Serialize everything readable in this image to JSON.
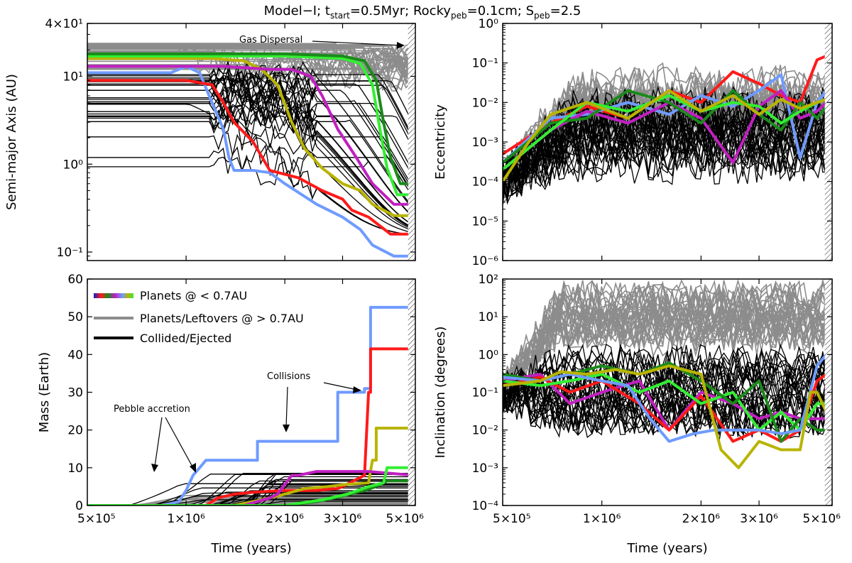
{
  "figure": {
    "title": "Model−I; tₛₜₐᵣₜ=0.5Myr; Rockyₚₑᵦ=0.1cm; Sₚₑᵦ=2.5",
    "title_parts": {
      "prefix": "Model−I; t",
      "sub1": "start",
      "mid1": "=0.5Myr; Rocky",
      "sub2": "peb",
      "mid2": "=0.1cm; S",
      "sub3": "peb",
      "suffix": "=2.5"
    }
  },
  "colors": {
    "blue": "#6f9bff",
    "red": "#ff1a1a",
    "gold": "#b8b400",
    "magenta": "#c020c0",
    "green_dark": "#1a8a1a",
    "green_light": "#33ee33",
    "gray": "#8c8c8c",
    "black": "#000000"
  },
  "legend": [
    {
      "label": "Planets @ < 0.7AU",
      "style": "rainbow"
    },
    {
      "label": "Planets/Leftovers @ > 0.7AU",
      "style": "gray"
    },
    {
      "label": "Collided/Ejected",
      "style": "black"
    }
  ],
  "annotations": {
    "gas_dispersal": "Gas Dispersal",
    "collisions": "Collisions",
    "pebble_accretion": "Pebble accretion"
  },
  "chart_data": [
    {
      "id": "semimajor",
      "type": "line",
      "xlabel": "",
      "ylabel": "Semi-major Axis (AU)",
      "xscale": "log",
      "yscale": "log",
      "xlim": [
        500000,
        5000000
      ],
      "ylim": [
        0.08,
        40
      ],
      "xticks": [
        {
          "v": 500000,
          "label": "5×10⁵"
        },
        {
          "v": 1000000,
          "label": "1×10⁶"
        },
        {
          "v": 2000000,
          "label": "2×10⁶"
        },
        {
          "v": 3000000,
          "label": "3×10⁶"
        },
        {
          "v": 5000000,
          "label": "5×10⁶"
        }
      ],
      "xticks_shown": false,
      "yticks": [
        {
          "v": 0.1,
          "label": "10⁻¹"
        },
        {
          "v": 1,
          "label": "10⁰"
        },
        {
          "v": 10,
          "label": "10¹"
        },
        {
          "v": 40,
          "label": "4×10¹"
        }
      ],
      "series": [
        {
          "color": "blue",
          "x": [
            500000,
            900000,
            1000000,
            1100000,
            1200000,
            1300000,
            1350000,
            1400000,
            1600000,
            1800000,
            2000000,
            2500000,
            3000000,
            3400000,
            3700000,
            4300000,
            4800000
          ],
          "y": [
            11,
            11,
            13,
            11,
            5,
            2.5,
            1.2,
            0.85,
            0.85,
            0.8,
            0.6,
            0.35,
            0.25,
            0.18,
            0.12,
            0.09,
            0.09
          ]
        },
        {
          "color": "red",
          "x": [
            500000,
            1000000,
            1200000,
            1300000,
            1400000,
            1600000,
            1800000,
            2200000,
            2600000,
            3000000,
            3200000,
            3600000,
            4200000,
            4800000
          ],
          "y": [
            9,
            9,
            8,
            5,
            3,
            1.8,
            0.85,
            0.7,
            0.5,
            0.4,
            0.3,
            0.25,
            0.16,
            0.16
          ]
        },
        {
          "color": "gold",
          "x": [
            500000,
            1200000,
            1500000,
            1700000,
            1900000,
            2100000,
            2300000,
            2600000,
            3000000,
            3400000,
            3700000,
            4300000,
            4800000
          ],
          "y": [
            16,
            16,
            15,
            12,
            8,
            3,
            1.5,
            0.9,
            0.6,
            0.5,
            0.35,
            0.26,
            0.26
          ]
        },
        {
          "color": "magenta",
          "x": [
            500000,
            1300000,
            1800000,
            2100000,
            2400000,
            2600000,
            2900000,
            3300000,
            3700000,
            4300000,
            4800000
          ],
          "y": [
            13,
            13,
            12,
            12,
            10,
            6,
            2.5,
            1.2,
            0.6,
            0.35,
            0.35
          ]
        },
        {
          "color": "green_light",
          "x": [
            500000,
            2000000,
            3000000,
            3400000,
            3700000,
            3900000,
            4100000,
            4400000,
            4800000
          ],
          "y": [
            17,
            17,
            16,
            14,
            8,
            2.5,
            0.9,
            0.45,
            0.45
          ]
        },
        {
          "color": "green_dark",
          "x": [
            500000,
            2000000,
            3000000,
            3500000,
            3800000,
            4000000,
            4200000,
            4500000,
            4800000
          ],
          "y": [
            18,
            18,
            17,
            15,
            9,
            3,
            1.2,
            0.6,
            0.6
          ]
        }
      ]
    },
    {
      "id": "eccentricity",
      "type": "line",
      "xlabel": "",
      "ylabel": "Eccentricity",
      "xscale": "log",
      "yscale": "log",
      "xlim": [
        500000,
        5000000
      ],
      "ylim": [
        1e-06,
        1
      ],
      "xticks": [
        {
          "v": 500000,
          "label": "5×10⁵"
        },
        {
          "v": 1000000,
          "label": "1×10⁶"
        },
        {
          "v": 2000000,
          "label": "2×10⁶"
        },
        {
          "v": 3000000,
          "label": "3×10⁶"
        },
        {
          "v": 5000000,
          "label": "5×10⁶"
        }
      ],
      "xticks_shown": false,
      "yticks": [
        {
          "v": 1e-06,
          "label": "10⁻⁶"
        },
        {
          "v": 1e-05,
          "label": "10⁻⁵"
        },
        {
          "v": 0.0001,
          "label": "10⁻⁴"
        },
        {
          "v": 0.001,
          "label": "10⁻³"
        },
        {
          "v": 0.01,
          "label": "10⁻²"
        },
        {
          "v": 0.1,
          "label": "10⁻¹"
        },
        {
          "v": 1,
          "label": "10⁰"
        }
      ],
      "series": [
        {
          "color": "red",
          "x": [
            500000,
            700000,
            900000,
            1200000,
            1600000,
            2000000,
            2500000,
            3000000,
            3500000,
            4000000,
            4500000,
            4800000
          ],
          "y": [
            0.0005,
            0.003,
            0.008,
            0.004,
            0.02,
            0.01,
            0.06,
            0.03,
            0.015,
            0.01,
            0.12,
            0.15
          ]
        },
        {
          "color": "blue",
          "x": [
            500000,
            700000,
            900000,
            1200000,
            1600000,
            2000000,
            2500000,
            3000000,
            3500000,
            4000000,
            4500000,
            4800000
          ],
          "y": [
            0.0003,
            0.004,
            0.005,
            0.01,
            0.005,
            0.015,
            0.008,
            0.02,
            0.05,
            0.0004,
            0.01,
            0.02
          ]
        },
        {
          "color": "magenta",
          "x": [
            500000,
            700000,
            900000,
            1200000,
            1600000,
            2000000,
            2500000,
            3000000,
            3500000,
            4000000,
            4500000,
            4800000
          ],
          "y": [
            0.0002,
            0.002,
            0.006,
            0.003,
            0.01,
            0.004,
            0.0003,
            0.008,
            0.02,
            0.004,
            0.006,
            0.01
          ]
        },
        {
          "color": "green_dark",
          "x": [
            500000,
            700000,
            900000,
            1200000,
            1600000,
            2000000,
            2500000,
            3000000,
            3500000,
            4000000,
            4500000,
            4800000
          ],
          "y": [
            0.0003,
            0.003,
            0.004,
            0.02,
            0.01,
            0.003,
            0.02,
            0.005,
            0.002,
            0.01,
            0.004,
            0.008
          ]
        },
        {
          "color": "green_light",
          "x": [
            500000,
            700000,
            900000,
            1200000,
            1600000,
            2000000,
            2500000,
            3000000,
            3500000,
            4000000,
            4500000,
            4800000
          ],
          "y": [
            0.0002,
            0.002,
            0.01,
            0.006,
            0.015,
            0.006,
            0.01,
            0.008,
            0.003,
            0.006,
            0.01,
            0.012
          ]
        },
        {
          "color": "gold",
          "x": [
            500000,
            600000,
            700000,
            900000,
            1200000,
            1600000,
            2000000,
            2500000,
            3000000,
            3500000,
            4000000,
            4500000,
            4800000
          ],
          "y": [
            0.0001,
            0.001,
            0.005,
            0.01,
            0.004,
            0.02,
            0.006,
            0.015,
            0.005,
            0.012,
            0.007,
            0.01,
            0.012
          ]
        }
      ]
    },
    {
      "id": "mass",
      "type": "line",
      "xlabel": "Time (years)",
      "ylabel": "Mass (Earth)",
      "xscale": "log",
      "yscale": "linear",
      "xlim": [
        500000,
        5000000
      ],
      "ylim": [
        0,
        60
      ],
      "xticks": [
        {
          "v": 500000,
          "label": "5×10⁵"
        },
        {
          "v": 1000000,
          "label": "1×10⁶"
        },
        {
          "v": 2000000,
          "label": "2×10⁶"
        },
        {
          "v": 3000000,
          "label": "3×10⁶"
        },
        {
          "v": 5000000,
          "label": "5×10⁶"
        }
      ],
      "xticks_shown": true,
      "yticks": [
        {
          "v": 0,
          "label": "0"
        },
        {
          "v": 10,
          "label": "10"
        },
        {
          "v": 20,
          "label": "20"
        },
        {
          "v": 30,
          "label": "30"
        },
        {
          "v": 40,
          "label": "40"
        },
        {
          "v": 50,
          "label": "50"
        },
        {
          "v": 60,
          "label": "60"
        }
      ],
      "series": [
        {
          "color": "blue",
          "x": [
            500000,
            850000,
            950000,
            1000000,
            1050000,
            1100000,
            1150000,
            1650000,
            1650000,
            2900000,
            2900000,
            3500000,
            3500000,
            3650000,
            3650000,
            4950000
          ],
          "y": [
            0,
            0,
            1,
            4,
            8,
            10,
            12,
            12,
            17,
            17,
            30,
            30,
            31,
            31,
            52.5,
            52.5
          ]
        },
        {
          "color": "red",
          "x": [
            500000,
            1150000,
            1250000,
            1400000,
            1600000,
            2000000,
            2500000,
            2900000,
            3000000,
            3500000,
            3600000,
            3650000,
            3650000,
            4950000
          ],
          "y": [
            0,
            0,
            2,
            3,
            3.5,
            4,
            4,
            4.5,
            5,
            8,
            30,
            30,
            41.5,
            41.5
          ]
        },
        {
          "color": "gold",
          "x": [
            500000,
            1400000,
            1700000,
            2000000,
            2300000,
            2700000,
            3000000,
            3600000,
            3700000,
            3800000,
            3800000,
            4950000
          ],
          "y": [
            0,
            0,
            1.5,
            3,
            4.5,
            5,
            5.5,
            6,
            12,
            12,
            20.5,
            20.5
          ]
        },
        {
          "color": "magenta",
          "x": [
            500000,
            1500000,
            1800000,
            1900000,
            2100000,
            2200000,
            2500000,
            3600000,
            4950000
          ],
          "y": [
            0,
            0,
            2,
            3,
            8,
            8,
            9,
            9,
            8
          ]
        },
        {
          "color": "green_dark",
          "x": [
            500000,
            2000000,
            2500000,
            3000000,
            3500000,
            3800000,
            4100000,
            4950000
          ],
          "y": [
            0,
            0,
            1,
            2.5,
            4,
            5,
            6.5,
            6.5
          ]
        },
        {
          "color": "green_light",
          "x": [
            500000,
            2000000,
            2600000,
            3100000,
            3600000,
            4000000,
            4100000,
            4950000
          ],
          "y": [
            0,
            0,
            1.5,
            3,
            5,
            6,
            10,
            10
          ]
        }
      ]
    },
    {
      "id": "inclination",
      "type": "line",
      "xlabel": "Time (years)",
      "ylabel": "Inclination (degrees)",
      "xscale": "log",
      "yscale": "log",
      "xlim": [
        500000,
        5000000
      ],
      "ylim": [
        0.0001,
        100
      ],
      "xticks": [
        {
          "v": 500000,
          "label": "5×10⁵"
        },
        {
          "v": 1000000,
          "label": "1×10⁶"
        },
        {
          "v": 2000000,
          "label": "2×10⁶"
        },
        {
          "v": 3000000,
          "label": "3×10⁶"
        },
        {
          "v": 5000000,
          "label": "5×10⁶"
        }
      ],
      "xticks_shown": true,
      "yticks": [
        {
          "v": 0.0001,
          "label": "10⁻⁴"
        },
        {
          "v": 0.001,
          "label": "10⁻³"
        },
        {
          "v": 0.01,
          "label": "10⁻²"
        },
        {
          "v": 0.1,
          "label": "10⁻¹"
        },
        {
          "v": 1,
          "label": "10⁰"
        },
        {
          "v": 10,
          "label": "10¹"
        },
        {
          "v": 100,
          "label": "10²"
        }
      ],
      "series": [
        {
          "color": "magenta",
          "x": [
            500000,
            650000,
            800000,
            1000000,
            1300000,
            1600000,
            2000000,
            2500000,
            3000000,
            3500000,
            4000000,
            4500000,
            4800000
          ],
          "y": [
            0.2,
            0.3,
            0.05,
            0.1,
            0.2,
            0.01,
            0.1,
            0.05,
            0.02,
            0.03,
            0.02,
            0.02,
            0.02
          ]
        },
        {
          "color": "red",
          "x": [
            500000,
            650000,
            800000,
            1000000,
            1300000,
            1600000,
            2000000,
            2500000,
            3000000,
            3500000,
            4000000,
            4500000,
            4800000
          ],
          "y": [
            0.15,
            0.25,
            0.1,
            0.2,
            0.05,
            0.01,
            0.08,
            0.005,
            0.01,
            0.005,
            0.01,
            0.2,
            0.3
          ]
        },
        {
          "color": "green_light",
          "x": [
            500000,
            650000,
            800000,
            1000000,
            1300000,
            1600000,
            2000000,
            2500000,
            3000000,
            3500000,
            4000000,
            4500000,
            4800000
          ],
          "y": [
            0.2,
            0.15,
            0.2,
            0.3,
            0.1,
            0.2,
            0.05,
            0.1,
            0.01,
            0.03,
            0.01,
            0.05,
            0.05
          ]
        },
        {
          "color": "green_dark",
          "x": [
            500000,
            650000,
            800000,
            1000000,
            1300000,
            1600000,
            2000000,
            2500000,
            3000000,
            3500000,
            4000000,
            4500000,
            4800000
          ],
          "y": [
            0.3,
            0.2,
            0.3,
            0.5,
            0.3,
            0.6,
            0.2,
            0.05,
            0.2,
            0.005,
            0.02,
            0.01,
            0.01
          ]
        },
        {
          "color": "blue",
          "x": [
            500000,
            650000,
            800000,
            1000000,
            1200000,
            1400000,
            1600000,
            1900000,
            2200000,
            2500000,
            3000000,
            3500000,
            4000000,
            4500000,
            4800000
          ],
          "y": [
            0.25,
            0.2,
            0.3,
            0.2,
            0.15,
            0.02,
            0.005,
            0.008,
            0.01,
            0.01,
            0.01,
            0.008,
            0.01,
            0.5,
            1
          ]
        },
        {
          "color": "gold",
          "x": [
            500000,
            650000,
            750000,
            900000,
            1100000,
            1300000,
            1600000,
            2000000,
            2300000,
            2600000,
            3000000,
            3500000,
            4000000,
            4300000,
            4500000,
            4800000
          ],
          "y": [
            0.15,
            0.2,
            0.35,
            0.3,
            0.4,
            0.3,
            0.5,
            0.3,
            0.003,
            0.001,
            0.005,
            0.003,
            0.003,
            0.1,
            0.1,
            0.03
          ]
        }
      ]
    }
  ]
}
